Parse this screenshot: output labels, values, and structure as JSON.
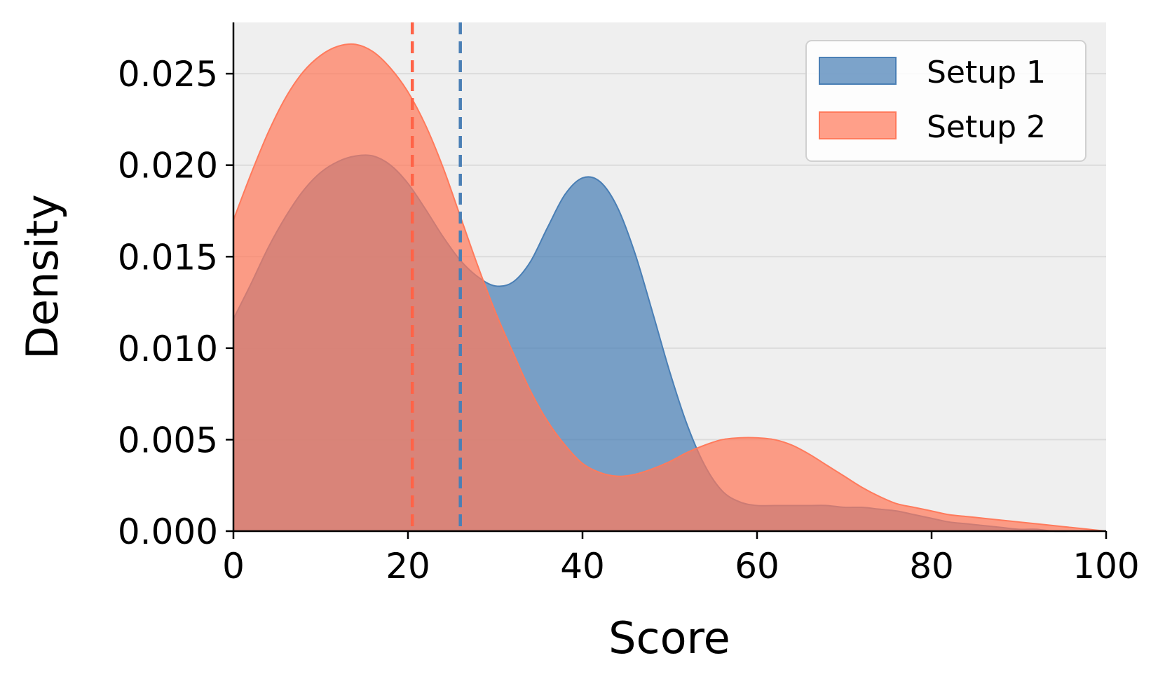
{
  "chart_data": {
    "type": "area",
    "title": "",
    "xlabel": "Score",
    "ylabel": "Density",
    "xlim": [
      0,
      100
    ],
    "ylim": [
      0,
      0.0278
    ],
    "xticks": [
      0,
      20,
      40,
      60,
      80,
      100
    ],
    "xtick_labels": [
      "0",
      "20",
      "40",
      "60",
      "80",
      "100"
    ],
    "yticks": [
      0,
      0.005,
      0.01,
      0.015,
      0.02,
      0.025
    ],
    "ytick_labels": [
      "0.000",
      "0.005",
      "0.010",
      "0.015",
      "0.020",
      "0.025"
    ],
    "grid": "horizontal",
    "legend_position": "top-right",
    "series": [
      {
        "name": "Setup 1",
        "color": "#4a7fb5",
        "mean_line": 26,
        "x": [
          0,
          2,
          4,
          6,
          8,
          10,
          12,
          14,
          16,
          18,
          20,
          22,
          24,
          26,
          28,
          30,
          32,
          34,
          36,
          38,
          40,
          42,
          44,
          46,
          48,
          50,
          52,
          54,
          56,
          58,
          60,
          62,
          64,
          66,
          68,
          70,
          72,
          74,
          76,
          78,
          80,
          82,
          84,
          86,
          88,
          90,
          92,
          94,
          96,
          98,
          100
        ],
        "y": [
          0.0116,
          0.0135,
          0.0155,
          0.0172,
          0.0186,
          0.0196,
          0.0202,
          0.0205,
          0.0205,
          0.02,
          0.019,
          0.0176,
          0.0161,
          0.0148,
          0.0139,
          0.0134,
          0.0136,
          0.0147,
          0.0166,
          0.0184,
          0.0193,
          0.0191,
          0.0177,
          0.0152,
          0.012,
          0.0087,
          0.0058,
          0.0036,
          0.0022,
          0.0016,
          0.0014,
          0.0014,
          0.0014,
          0.0014,
          0.0014,
          0.0013,
          0.0013,
          0.0012,
          0.0011,
          0.0009,
          0.0007,
          0.0005,
          0.0004,
          0.0003,
          0.0002,
          0.0001,
          0.0001,
          0.0,
          0.0,
          0.0,
          0.0
        ]
      },
      {
        "name": "Setup 2",
        "color": "#ff7a5c",
        "mean_line": 20.5,
        "x": [
          0,
          2,
          4,
          6,
          8,
          10,
          12,
          14,
          16,
          18,
          20,
          22,
          24,
          26,
          28,
          30,
          32,
          34,
          36,
          38,
          40,
          42,
          44,
          46,
          48,
          50,
          52,
          54,
          56,
          58,
          60,
          62,
          64,
          66,
          68,
          70,
          72,
          74,
          76,
          78,
          80,
          82,
          84,
          86,
          88,
          90,
          92,
          94,
          96,
          98,
          100
        ],
        "y": [
          0.017,
          0.0195,
          0.0218,
          0.0237,
          0.0251,
          0.026,
          0.0265,
          0.0266,
          0.0262,
          0.0253,
          0.024,
          0.0222,
          0.0199,
          0.0172,
          0.0145,
          0.012,
          0.0098,
          0.0077,
          0.006,
          0.0047,
          0.0037,
          0.0032,
          0.003,
          0.0031,
          0.0034,
          0.0038,
          0.0043,
          0.0047,
          0.005,
          0.0051,
          0.0051,
          0.005,
          0.0047,
          0.0042,
          0.0036,
          0.003,
          0.0024,
          0.0019,
          0.0015,
          0.0013,
          0.0011,
          0.0009,
          0.0008,
          0.0007,
          0.0006,
          0.0005,
          0.0004,
          0.0003,
          0.0002,
          0.0001,
          0.0
        ]
      }
    ],
    "colors": {
      "plot_background": "#efefef",
      "grid": "#dcdcdc",
      "axis": "#000000",
      "setup1_mean_line": "#4a7fb5",
      "setup2_mean_line": "#ff6347"
    }
  }
}
